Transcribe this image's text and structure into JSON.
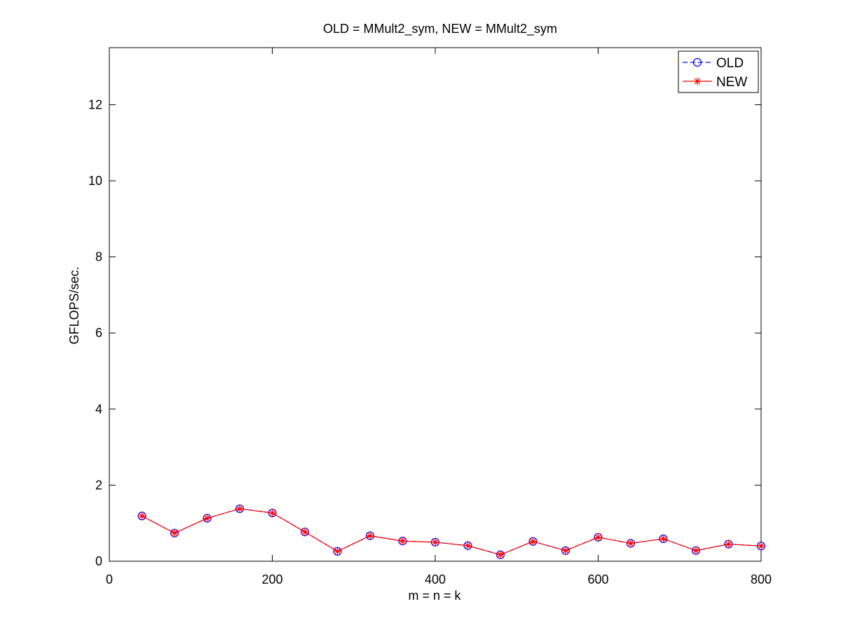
{
  "chart_data": {
    "type": "line",
    "title": "OLD = MMult2_sym, NEW = MMult2_sym",
    "xlabel": "m = n = k",
    "ylabel": "GFLOPS/sec.",
    "xlim": [
      0,
      800
    ],
    "ylim": [
      0,
      13.5
    ],
    "xticks": [
      0,
      200,
      400,
      600,
      800
    ],
    "yticks": [
      0,
      2,
      4,
      6,
      8,
      10,
      12
    ],
    "x": [
      40,
      80,
      120,
      160,
      200,
      240,
      280,
      320,
      360,
      400,
      440,
      480,
      520,
      560,
      600,
      640,
      680,
      720,
      760,
      800
    ],
    "series": [
      {
        "name": "OLD",
        "color": "#0000ff",
        "line_style": "dashed",
        "marker": "circle",
        "values": [
          1.19,
          0.74,
          1.13,
          1.38,
          1.27,
          0.77,
          0.26,
          0.67,
          0.53,
          0.5,
          0.41,
          0.17,
          0.52,
          0.28,
          0.63,
          0.47,
          0.59,
          0.28,
          0.45,
          0.4
        ]
      },
      {
        "name": "NEW",
        "color": "#ff0000",
        "line_style": "solid",
        "marker": "asterisk",
        "values": [
          1.19,
          0.74,
          1.13,
          1.38,
          1.27,
          0.77,
          0.26,
          0.67,
          0.53,
          0.5,
          0.41,
          0.17,
          0.52,
          0.28,
          0.63,
          0.47,
          0.59,
          0.28,
          0.45,
          0.4
        ]
      }
    ],
    "legend_position": "top-right"
  }
}
